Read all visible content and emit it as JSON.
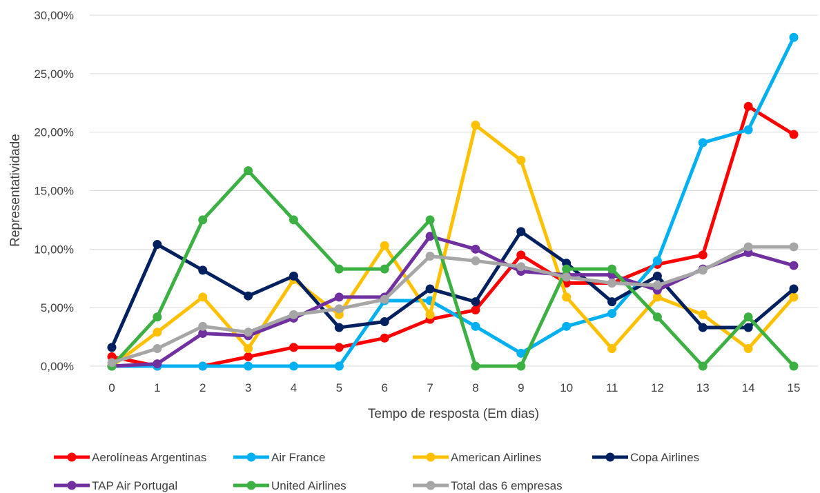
{
  "chart_data": {
    "type": "line",
    "xlabel": "Tempo de resposta (Em dias)",
    "ylabel": "Representatividade",
    "x": [
      0,
      1,
      2,
      3,
      4,
      5,
      6,
      7,
      8,
      9,
      10,
      11,
      12,
      13,
      14,
      15
    ],
    "ylim": [
      0,
      30
    ],
    "yticks": [
      "0,00%",
      "5,00%",
      "10,00%",
      "15,00%",
      "20,00%",
      "25,00%",
      "30,00%"
    ],
    "grid": true,
    "legend": "bottom",
    "series": [
      {
        "name": "Aerolíneas Argentinas",
        "color": "#FF0000",
        "values": [
          0.8,
          0.0,
          0.0,
          0.8,
          1.6,
          1.6,
          2.4,
          4.0,
          4.8,
          9.5,
          7.1,
          7.1,
          8.7,
          9.5,
          22.2,
          19.8
        ]
      },
      {
        "name": "Air France",
        "color": "#00B0F0",
        "values": [
          0.0,
          0.0,
          0.0,
          0.0,
          0.0,
          0.0,
          5.6,
          5.6,
          3.4,
          1.1,
          3.4,
          4.5,
          9.0,
          19.1,
          20.2,
          28.1
        ]
      },
      {
        "name": "American Airlines",
        "color": "#FFC000",
        "values": [
          0.0,
          2.9,
          5.9,
          1.5,
          7.4,
          4.4,
          10.3,
          4.4,
          20.6,
          17.6,
          5.9,
          1.5,
          5.9,
          4.4,
          1.5,
          5.9
        ]
      },
      {
        "name": "Copa Airlines",
        "color": "#002060",
        "values": [
          1.6,
          10.4,
          8.2,
          6.0,
          7.7,
          3.3,
          3.8,
          6.6,
          5.5,
          11.5,
          8.8,
          5.5,
          7.7,
          3.3,
          3.3,
          6.6
        ]
      },
      {
        "name": "TAP Air Portugal",
        "color": "#7030A0",
        "values": [
          0.0,
          0.2,
          2.8,
          2.6,
          4.1,
          5.9,
          5.9,
          11.1,
          10.0,
          8.1,
          7.8,
          7.8,
          6.5,
          8.3,
          9.7,
          8.6
        ]
      },
      {
        "name": "United Airlines",
        "color": "#3CB043",
        "values": [
          0.0,
          4.2,
          12.5,
          16.7,
          12.5,
          8.3,
          8.3,
          12.5,
          0.0,
          0.0,
          8.3,
          8.3,
          4.2,
          0.0,
          4.2,
          0.0
        ]
      },
      {
        "name": "Total das 6 empresas",
        "color": "#A6A6A6",
        "values": [
          0.3,
          1.5,
          3.4,
          2.9,
          4.4,
          4.9,
          5.7,
          9.4,
          9.0,
          8.5,
          7.6,
          7.1,
          6.9,
          8.2,
          10.2,
          10.2
        ]
      }
    ]
  }
}
